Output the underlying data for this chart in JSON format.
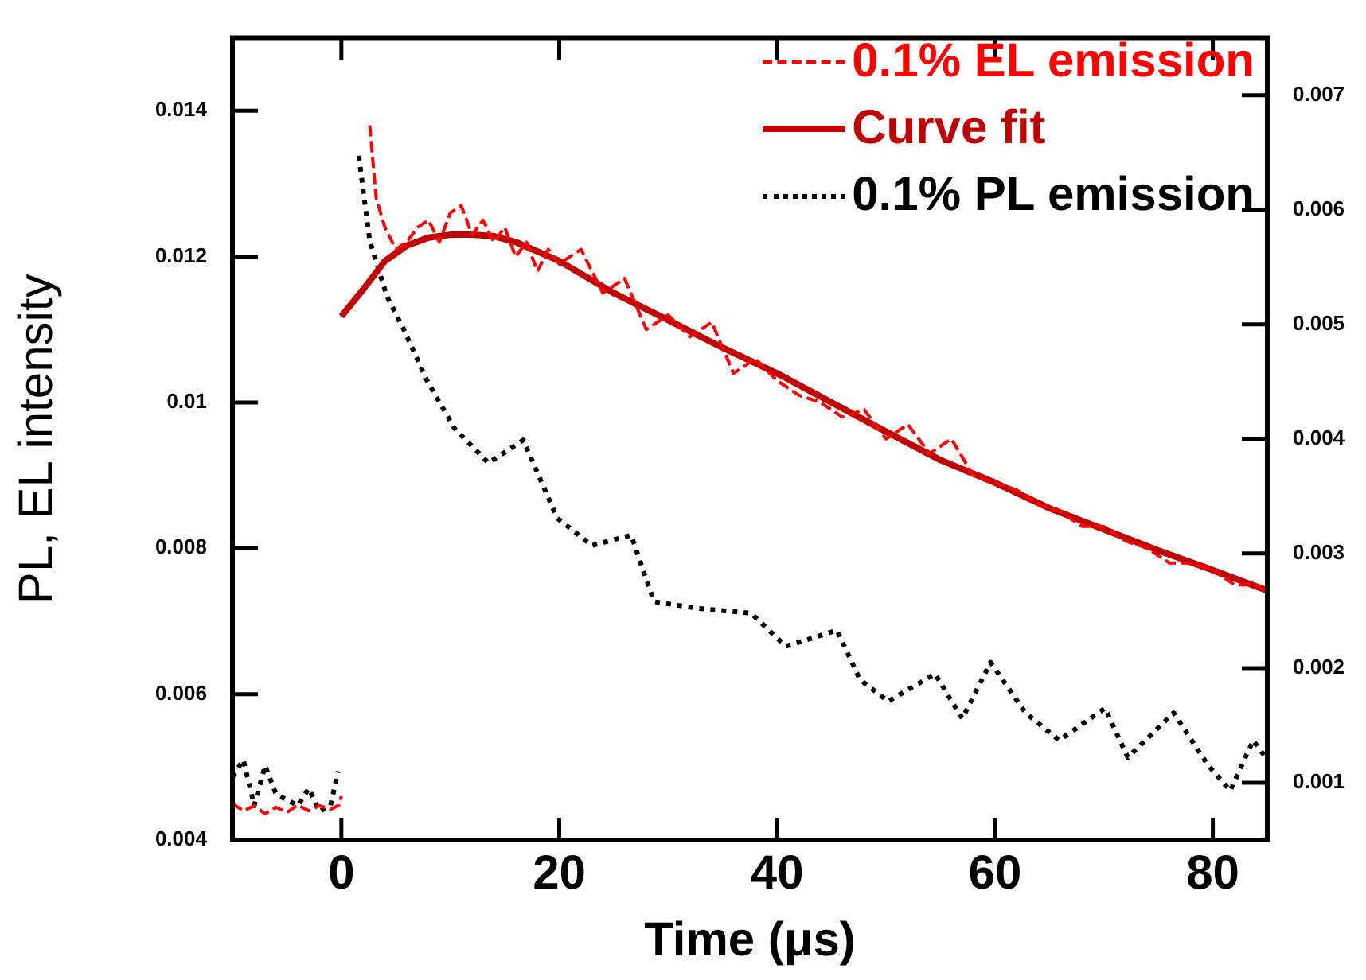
{
  "chart_data": {
    "type": "line",
    "xlabel": "Time (μs)",
    "ylabel": "PL, EL intensity",
    "xlim": [
      -10,
      85
    ],
    "xticks": [
      0,
      20,
      40,
      60,
      80
    ],
    "ylim": [
      0.004,
      0.015
    ],
    "yticks": [
      0.004,
      0.006,
      0.008,
      0.01,
      0.012,
      0.014
    ],
    "y2lim": [
      0.0005,
      0.0075
    ],
    "y2ticks": [
      0.001,
      0.002,
      0.003,
      0.004,
      0.005,
      0.006,
      0.007
    ],
    "legend": "top right",
    "grid": false,
    "marker": "none",
    "series": [
      {
        "name": "0.1% EL emission",
        "color": "#ff0000",
        "line_style": "dashed",
        "x": [
          -10,
          -9,
          -8,
          -7,
          -6,
          -5,
          -4,
          -3,
          -2,
          -1,
          -0.2,
          0,
          0.3,
          2.1,
          2.6,
          3.2,
          4,
          5,
          6,
          7,
          8,
          9,
          10,
          11,
          12,
          13,
          14,
          15,
          16,
          17,
          18,
          19,
          20,
          22,
          24,
          26,
          28,
          30,
          32,
          34,
          36,
          38,
          40,
          42,
          44,
          46,
          48,
          50,
          52,
          54,
          56,
          58,
          60,
          62,
          64,
          66,
          68,
          70,
          72,
          74,
          76,
          78,
          80,
          82,
          84,
          85
        ],
        "values": [
          0.0045,
          0.0044,
          0.00447,
          0.00436,
          0.00445,
          0.00438,
          0.00448,
          0.0044,
          0.00447,
          0.00442,
          0.00448,
          0.0046,
          null,
          null,
          0.0138,
          0.0128,
          0.0124,
          0.0121,
          0.0122,
          0.0124,
          0.0125,
          0.0122,
          0.0126,
          0.0127,
          0.0123,
          0.0125,
          0.0122,
          0.0124,
          0.012,
          0.0122,
          0.0118,
          0.0121,
          0.0119,
          0.0121,
          0.0115,
          0.0117,
          0.011,
          0.0112,
          0.0109,
          0.0111,
          0.0104,
          0.0106,
          0.0103,
          0.0101,
          0.01,
          0.0098,
          0.0099,
          0.0095,
          0.0097,
          0.0093,
          0.0095,
          0.009,
          0.0089,
          0.0088,
          0.0086,
          0.0085,
          0.0083,
          0.0083,
          0.0081,
          0.008,
          0.0078,
          0.0078,
          0.0077,
          0.0075,
          0.0075,
          0.0074
        ]
      },
      {
        "name": "Curve fit",
        "color": "#c00000",
        "line_style": "solid",
        "x": [
          0,
          2,
          4,
          6,
          8,
          10,
          12,
          14,
          16,
          18,
          20,
          25,
          30,
          35,
          40,
          45,
          50,
          55,
          60,
          65,
          70,
          75,
          80,
          85
        ],
        "values": [
          0.01118,
          0.01155,
          0.01194,
          0.01215,
          0.01226,
          0.0123,
          0.0123,
          0.01228,
          0.0122,
          0.01207,
          0.01194,
          0.0115,
          0.01113,
          0.01075,
          0.0104,
          0.01,
          0.0096,
          0.00921,
          0.0089,
          0.00855,
          0.00826,
          0.00797,
          0.0077,
          0.00742
        ]
      },
      {
        "name": "0.1% PL emission",
        "color": "#000000",
        "line_style": "dotted",
        "axis": "y2",
        "x": [
          -10,
          -9,
          -8,
          -7,
          -6,
          -5,
          -4,
          -3,
          -2,
          -1,
          -0.3,
          0,
          0.5,
          1.6,
          2.6,
          4.2,
          5.7,
          7.8,
          10.4,
          13.5,
          16.7,
          19.8,
          23,
          26.6,
          28.7,
          32.8,
          37.6,
          40.8,
          45.5,
          47.6,
          50.2,
          54.5,
          57,
          59.6,
          62.8,
          65.9,
          70.1,
          72.2,
          76.4,
          79.5,
          81.6,
          83.7,
          85
        ],
        "values": [
          0.00105,
          0.0012,
          0.0008,
          0.00115,
          0.0009,
          0.00085,
          0.0008,
          0.00095,
          0.00075,
          0.0008,
          0.0011,
          null,
          null,
          0.00647,
          0.00573,
          0.00524,
          0.00496,
          0.00452,
          0.00409,
          0.00379,
          0.00399,
          0.00331,
          0.00307,
          0.00316,
          0.00258,
          0.00252,
          0.00248,
          0.00219,
          0.00233,
          0.0019,
          0.00171,
          0.00195,
          0.00156,
          0.00205,
          0.00161,
          0.00137,
          0.00165,
          0.00122,
          0.00161,
          0.00116,
          0.00093,
          0.00137,
          0.0012
        ]
      }
    ]
  }
}
